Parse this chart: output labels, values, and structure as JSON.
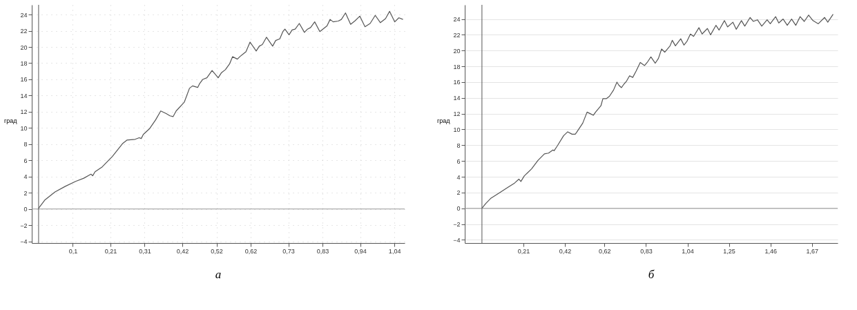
{
  "chart_data": [
    {
      "type": "line",
      "title": "а",
      "ylabel": "град",
      "grid": true,
      "marker": "none",
      "line_style": "solid",
      "xlim": [
        -0.02,
        1.07
      ],
      "ylim": [
        -4.2,
        25.2
      ],
      "xticks": [
        {
          "value": 0.1,
          "label": "0,1"
        },
        {
          "value": 0.21,
          "label": "0,21"
        },
        {
          "value": 0.31,
          "label": "0,31"
        },
        {
          "value": 0.42,
          "label": "0,42"
        },
        {
          "value": 0.52,
          "label": "0,52"
        },
        {
          "value": 0.62,
          "label": "0,62"
        },
        {
          "value": 0.73,
          "label": "0,73"
        },
        {
          "value": 0.83,
          "label": "0,83"
        },
        {
          "value": 0.94,
          "label": "0,94"
        },
        {
          "value": 1.04,
          "label": "1,04"
        }
      ],
      "yticks": [
        -4,
        -2,
        0,
        2,
        4,
        6,
        8,
        10,
        12,
        14,
        16,
        18,
        20,
        22,
        24
      ],
      "ref_lines": [
        {
          "axis": "y",
          "value": 0,
          "color": "#999999"
        },
        {
          "axis": "x",
          "value": 0,
          "color": "#555555"
        }
      ],
      "series": [
        {
          "color": "#555555",
          "x": [
            0,
            0.018,
            0.048,
            0.078,
            0.108,
            0.132,
            0.153,
            0.158,
            0.165,
            0.186,
            0.216,
            0.246,
            0.258,
            0.282,
            0.294,
            0.3,
            0.306,
            0.324,
            0.342,
            0.357,
            0.372,
            0.384,
            0.393,
            0.402,
            0.426,
            0.441,
            0.45,
            0.465,
            0.471,
            0.48,
            0.492,
            0.507,
            0.525,
            0.534,
            0.546,
            0.558,
            0.567,
            0.581,
            0.588,
            0.597,
            0.606,
            0.618,
            0.636,
            0.645,
            0.654,
            0.666,
            0.684,
            0.693,
            0.705,
            0.714,
            0.72,
            0.732,
            0.741,
            0.75,
            0.762,
            0.777,
            0.786,
            0.795,
            0.807,
            0.822,
            0.834,
            0.843,
            0.852,
            0.861,
            0.876,
            0.885,
            0.897,
            0.912,
            0.924,
            0.939,
            0.954,
            0.969,
            0.984,
            0.999,
            1.014,
            1.026,
            1.041,
            1.053,
            1.065
          ],
          "values": [
            0.1,
            1.1,
            2.1,
            2.8,
            3.4,
            3.8,
            4.3,
            4.1,
            4.6,
            5.2,
            6.5,
            8.1,
            8.5,
            8.6,
            8.8,
            8.7,
            9.2,
            9.9,
            11,
            12.1,
            11.8,
            11.5,
            11.4,
            12.1,
            13.2,
            14.9,
            15.2,
            15.0,
            15.5,
            16,
            16.2,
            17.1,
            16.2,
            16.8,
            17.2,
            17.9,
            18.8,
            18.5,
            18.8,
            19.1,
            19.4,
            20.6,
            19.5,
            20.1,
            20.3,
            21.2,
            20.1,
            20.8,
            21,
            21.9,
            22.2,
            21.5,
            22.1,
            22.2,
            22.9,
            21.8,
            22.2,
            22.4,
            23.1,
            21.9,
            22.3,
            22.6,
            23.4,
            23.1,
            23.2,
            23.4,
            24.2,
            22.8,
            23.2,
            23.8,
            22.5,
            22.9,
            23.9,
            23.0,
            23.5,
            24.4,
            23.1,
            23.6,
            23.4
          ]
        }
      ]
    },
    {
      "type": "line",
      "title": "б",
      "ylabel": "град",
      "grid": "y",
      "marker": "none",
      "line_style": "solid",
      "xlim": [
        -0.087,
        1.8
      ],
      "ylim": [
        -4.4,
        25.8
      ],
      "xticks": [
        {
          "value": 0.21,
          "label": "0,21"
        },
        {
          "value": 0.42,
          "label": "0,42"
        },
        {
          "value": 0.62,
          "label": "0,62"
        },
        {
          "value": 0.83,
          "label": "0,83"
        },
        {
          "value": 1.04,
          "label": "1,04"
        },
        {
          "value": 1.25,
          "label": "1,25"
        },
        {
          "value": 1.46,
          "label": "1,46"
        },
        {
          "value": 1.67,
          "label": "1,67"
        }
      ],
      "yticks": [
        -4,
        -2,
        0,
        2,
        4,
        6,
        8,
        10,
        12,
        14,
        16,
        18,
        20,
        22,
        24
      ],
      "ref_lines": [
        {
          "axis": "y",
          "value": 0,
          "color": "#999999"
        },
        {
          "axis": "x",
          "value": 0,
          "color": "#555555"
        }
      ],
      "series": [
        {
          "color": "#555555",
          "x": [
            0,
            0.019,
            0.046,
            0.09,
            0.133,
            0.165,
            0.187,
            0.197,
            0.214,
            0.251,
            0.284,
            0.316,
            0.337,
            0.359,
            0.365,
            0.381,
            0.413,
            0.434,
            0.456,
            0.472,
            0.478,
            0.51,
            0.532,
            0.548,
            0.564,
            0.575,
            0.602,
            0.612,
            0.629,
            0.645,
            0.666,
            0.683,
            0.693,
            0.706,
            0.72,
            0.731,
            0.747,
            0.763,
            0.78,
            0.801,
            0.823,
            0.839,
            0.855,
            0.877,
            0.893,
            0.909,
            0.925,
            0.952,
            0.963,
            0.979,
            1.006,
            1.022,
            1.038,
            1.055,
            1.071,
            1.098,
            1.114,
            1.141,
            1.157,
            1.184,
            1.2,
            1.227,
            1.243,
            1.27,
            1.287,
            1.313,
            1.33,
            1.357,
            1.373,
            1.394,
            1.416,
            1.443,
            1.459,
            1.486,
            1.502,
            1.524,
            1.545,
            1.567,
            1.588,
            1.61,
            1.631,
            1.653,
            1.675,
            1.702,
            1.734,
            1.75,
            1.777
          ],
          "values": [
            0,
            0.6,
            1.3,
            2,
            2.7,
            3.2,
            3.7,
            3.4,
            4.1,
            5.0,
            6.1,
            6.9,
            7,
            7.4,
            7.3,
            7.9,
            9.2,
            9.7,
            9.4,
            9.4,
            9.6,
            10.8,
            12.2,
            12.0,
            11.8,
            12.2,
            13.0,
            13.9,
            13.9,
            14.2,
            15,
            16,
            15.6,
            15.3,
            15.8,
            16.1,
            16.8,
            16.6,
            17.4,
            18.5,
            18.1,
            18.6,
            19.2,
            18.4,
            19.0,
            20.2,
            19.8,
            20.6,
            21.3,
            20.6,
            21.5,
            20.7,
            21.2,
            22.1,
            21.8,
            22.9,
            22.1,
            22.8,
            22,
            23.2,
            22.6,
            23.8,
            23.0,
            23.6,
            22.7,
            23.8,
            23.1,
            24.2,
            23.7,
            23.9,
            23.1,
            23.9,
            23.4,
            24.3,
            23.5,
            24.0,
            23.2,
            24,
            23.2,
            24.3,
            23.7,
            24.5,
            23.8,
            23.4,
            24.2,
            23.6,
            24.6
          ]
        }
      ]
    }
  ]
}
